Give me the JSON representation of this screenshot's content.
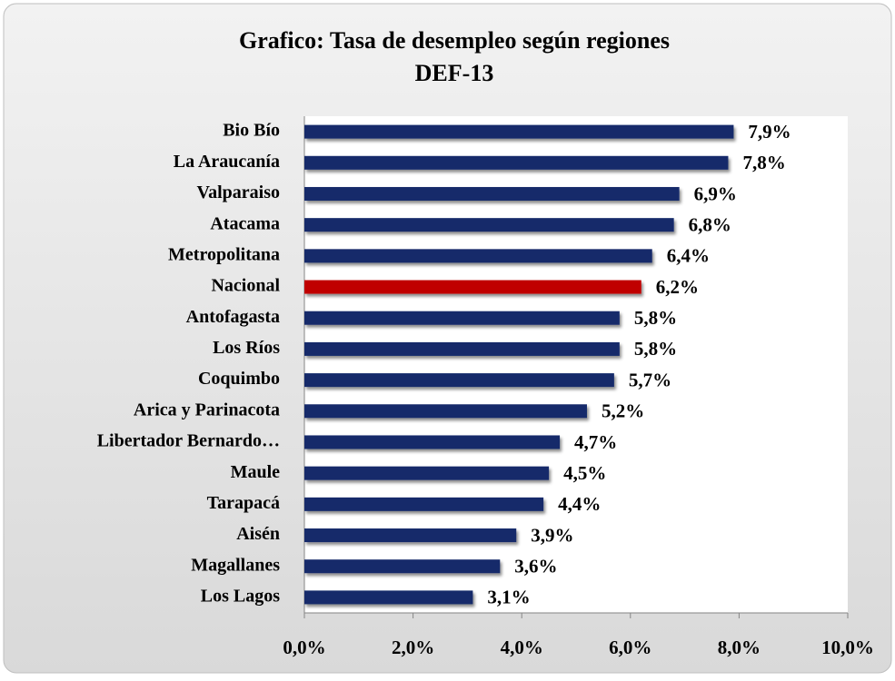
{
  "chart_data": {
    "type": "bar",
    "orientation": "horizontal",
    "title": [
      "Grafico: Tasa de desempleo  según regiones",
      "DEF-13"
    ],
    "categories": [
      "Bio Bío",
      "La Araucanía",
      "Valparaiso",
      "Atacama",
      "Metropolitana",
      "Nacional",
      "Antofagasta",
      "Los Ríos",
      "Coquimbo",
      "Arica y Parinacota",
      "Libertador Bernardo…",
      "Maule",
      "Tarapacá",
      "Aisén",
      "Magallanes",
      "Los Lagos"
    ],
    "values": [
      7.9,
      7.8,
      6.9,
      6.8,
      6.4,
      6.2,
      5.8,
      5.8,
      5.7,
      5.2,
      4.7,
      4.5,
      4.4,
      3.9,
      3.6,
      3.1
    ],
    "value_labels": [
      "7,9%",
      "7,8%",
      "6,9%",
      "6,8%",
      "6,4%",
      "6,2%",
      "5,8%",
      "5,8%",
      "5,7%",
      "5,2%",
      "4,7%",
      "4,5%",
      "4,4%",
      "3,9%",
      "3,6%",
      "3,1%"
    ],
    "colors": [
      "#13296b",
      "#13296b",
      "#13296b",
      "#13296b",
      "#13296b",
      "#c00000",
      "#13296b",
      "#13296b",
      "#13296b",
      "#13296b",
      "#13296b",
      "#13296b",
      "#13296b",
      "#13296b",
      "#13296b",
      "#13296b"
    ],
    "xlim": [
      0,
      10
    ],
    "xticks": [
      {
        "value": 0,
        "label": "0,0%"
      },
      {
        "value": 2,
        "label": "2,0%"
      },
      {
        "value": 4,
        "label": "4,0%"
      },
      {
        "value": 6,
        "label": "6,0%"
      },
      {
        "value": 8,
        "label": "8,0%"
      },
      {
        "value": 10,
        "label": "10,0%"
      }
    ]
  }
}
